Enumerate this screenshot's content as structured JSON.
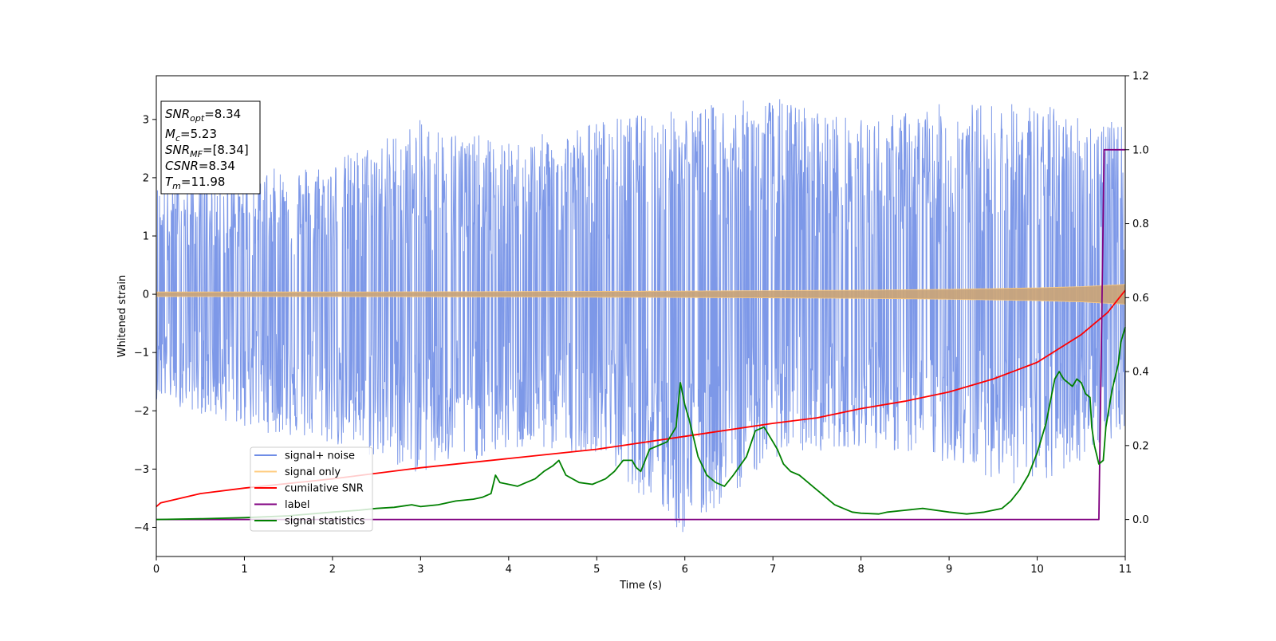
{
  "chart_data": {
    "type": "line",
    "xlabel": "Time (s)",
    "ylabel": "Whitened strain",
    "xlim": [
      0,
      11
    ],
    "ylim_left": [
      -4.5,
      3.75
    ],
    "ylim_right": [
      -0.1,
      1.2
    ],
    "x_ticks": [
      "0",
      "1",
      "2",
      "3",
      "4",
      "5",
      "6",
      "7",
      "8",
      "9",
      "10",
      "11"
    ],
    "y_left_ticks": [
      {
        "value": 3,
        "label": "3"
      },
      {
        "value": 2,
        "label": "2"
      },
      {
        "value": 1,
        "label": "1"
      },
      {
        "value": 0,
        "label": "0"
      },
      {
        "value": -1,
        "label": "−1"
      },
      {
        "value": -2,
        "label": "−2"
      },
      {
        "value": -3,
        "label": "−3"
      },
      {
        "value": -4,
        "label": "−4"
      }
    ],
    "y_right_ticks": [
      {
        "value": 1.2,
        "label": "1.2"
      },
      {
        "value": 1.0,
        "label": "1.0"
      },
      {
        "value": 0.8,
        "label": "0.8"
      },
      {
        "value": 0.6,
        "label": "0.6"
      },
      {
        "value": 0.4,
        "label": "0.4"
      },
      {
        "value": 0.2,
        "label": "0.2"
      },
      {
        "value": 0.0,
        "label": "0.0"
      }
    ],
    "annotation": {
      "snr_opt": "=8.34",
      "mc": "=5.23",
      "snr_mf": "=[8.34]",
      "csnr": "=8.34",
      "tm": "=11.98"
    },
    "legend": {
      "placement": "lower-left",
      "entries": [
        {
          "label": "signal+ noise",
          "color": "#6f8de6"
        },
        {
          "label": "signal only",
          "color": "#ffcc80"
        },
        {
          "label": "cumilative SNR",
          "color": "#ff0000"
        },
        {
          "label": "label",
          "color": "#800080"
        },
        {
          "label": "signal statistics",
          "color": "#008000"
        }
      ]
    },
    "series": [
      {
        "name": "signal+ noise",
        "axis": "left",
        "color": "#6f8de6",
        "style": "dense noise band",
        "x": [
          0,
          1,
          2,
          3,
          4,
          5,
          6,
          7,
          8,
          9,
          10,
          11
        ],
        "upper_envelope": [
          1.9,
          2.1,
          2.3,
          3.0,
          2.6,
          3.0,
          3.2,
          3.4,
          3.0,
          3.3,
          3.3,
          2.9
        ],
        "lower_envelope": [
          -1.8,
          -2.3,
          -2.6,
          -3.1,
          -2.7,
          -2.7,
          -4.2,
          -2.8,
          -2.6,
          -2.9,
          -3.4,
          -2.3
        ]
      },
      {
        "name": "signal only",
        "axis": "left",
        "color": "#ffcc80",
        "style": "chirp amplitude band",
        "x": [
          0,
          2,
          4,
          6,
          8,
          9,
          10,
          10.5,
          11
        ],
        "amplitude": [
          0.04,
          0.04,
          0.045,
          0.055,
          0.07,
          0.085,
          0.11,
          0.13,
          0.17
        ]
      },
      {
        "name": "cumilative SNR",
        "axis": "right",
        "color": "#ff0000",
        "x": [
          0,
          0.05,
          0.5,
          1,
          2,
          3,
          4,
          5,
          6,
          7,
          7.5,
          8,
          8.5,
          9,
          9.5,
          10,
          10.5,
          10.8,
          11
        ],
        "y": [
          0.035,
          0.045,
          0.07,
          0.085,
          0.11,
          0.14,
          0.165,
          0.19,
          0.225,
          0.26,
          0.275,
          0.3,
          0.32,
          0.345,
          0.38,
          0.425,
          0.5,
          0.56,
          0.62
        ]
      },
      {
        "name": "label",
        "axis": "right",
        "color": "#800080",
        "x": [
          0,
          10.7,
          10.76,
          11
        ],
        "y": [
          0.0,
          0.0,
          1.0,
          1.0
        ]
      },
      {
        "name": "signal statistics",
        "axis": "right",
        "color": "#008000",
        "x": [
          0,
          0.5,
          1,
          1.5,
          2,
          2.3,
          2.5,
          2.7,
          2.9,
          3.0,
          3.2,
          3.4,
          3.6,
          3.7,
          3.8,
          3.85,
          3.9,
          4.0,
          4.1,
          4.2,
          4.3,
          4.4,
          4.5,
          4.57,
          4.65,
          4.8,
          4.95,
          5.0,
          5.1,
          5.2,
          5.3,
          5.4,
          5.45,
          5.5,
          5.6,
          5.7,
          5.8,
          5.9,
          5.95,
          6.0,
          6.05,
          6.1,
          6.15,
          6.25,
          6.35,
          6.45,
          6.55,
          6.7,
          6.8,
          6.9,
          7.0,
          7.05,
          7.12,
          7.2,
          7.3,
          7.35,
          7.45,
          7.55,
          7.6,
          7.7,
          7.8,
          7.9,
          8.0,
          8.2,
          8.3,
          8.5,
          8.7,
          8.85,
          9.0,
          9.2,
          9.4,
          9.6,
          9.7,
          9.8,
          9.9,
          10.0,
          10.1,
          10.2,
          10.25,
          10.3,
          10.4,
          10.45,
          10.5,
          10.55,
          10.6,
          10.62,
          10.65,
          10.7,
          10.75,
          10.78,
          10.85,
          10.92,
          10.95,
          11.0
        ],
        "y": [
          0.0,
          0.002,
          0.005,
          0.01,
          0.02,
          0.025,
          0.03,
          0.033,
          0.04,
          0.035,
          0.04,
          0.05,
          0.055,
          0.06,
          0.07,
          0.12,
          0.1,
          0.095,
          0.09,
          0.1,
          0.11,
          0.13,
          0.145,
          0.16,
          0.12,
          0.1,
          0.095,
          0.1,
          0.11,
          0.13,
          0.16,
          0.16,
          0.14,
          0.13,
          0.19,
          0.2,
          0.21,
          0.25,
          0.37,
          0.31,
          0.27,
          0.22,
          0.17,
          0.12,
          0.1,
          0.09,
          0.12,
          0.17,
          0.24,
          0.25,
          0.21,
          0.19,
          0.15,
          0.13,
          0.12,
          0.11,
          0.09,
          0.07,
          0.06,
          0.04,
          0.03,
          0.02,
          0.017,
          0.015,
          0.02,
          0.025,
          0.03,
          0.025,
          0.02,
          0.015,
          0.02,
          0.03,
          0.05,
          0.08,
          0.12,
          0.18,
          0.26,
          0.38,
          0.4,
          0.38,
          0.36,
          0.38,
          0.37,
          0.34,
          0.33,
          0.25,
          0.2,
          0.15,
          0.16,
          0.25,
          0.35,
          0.42,
          0.48,
          0.52
        ]
      }
    ]
  }
}
